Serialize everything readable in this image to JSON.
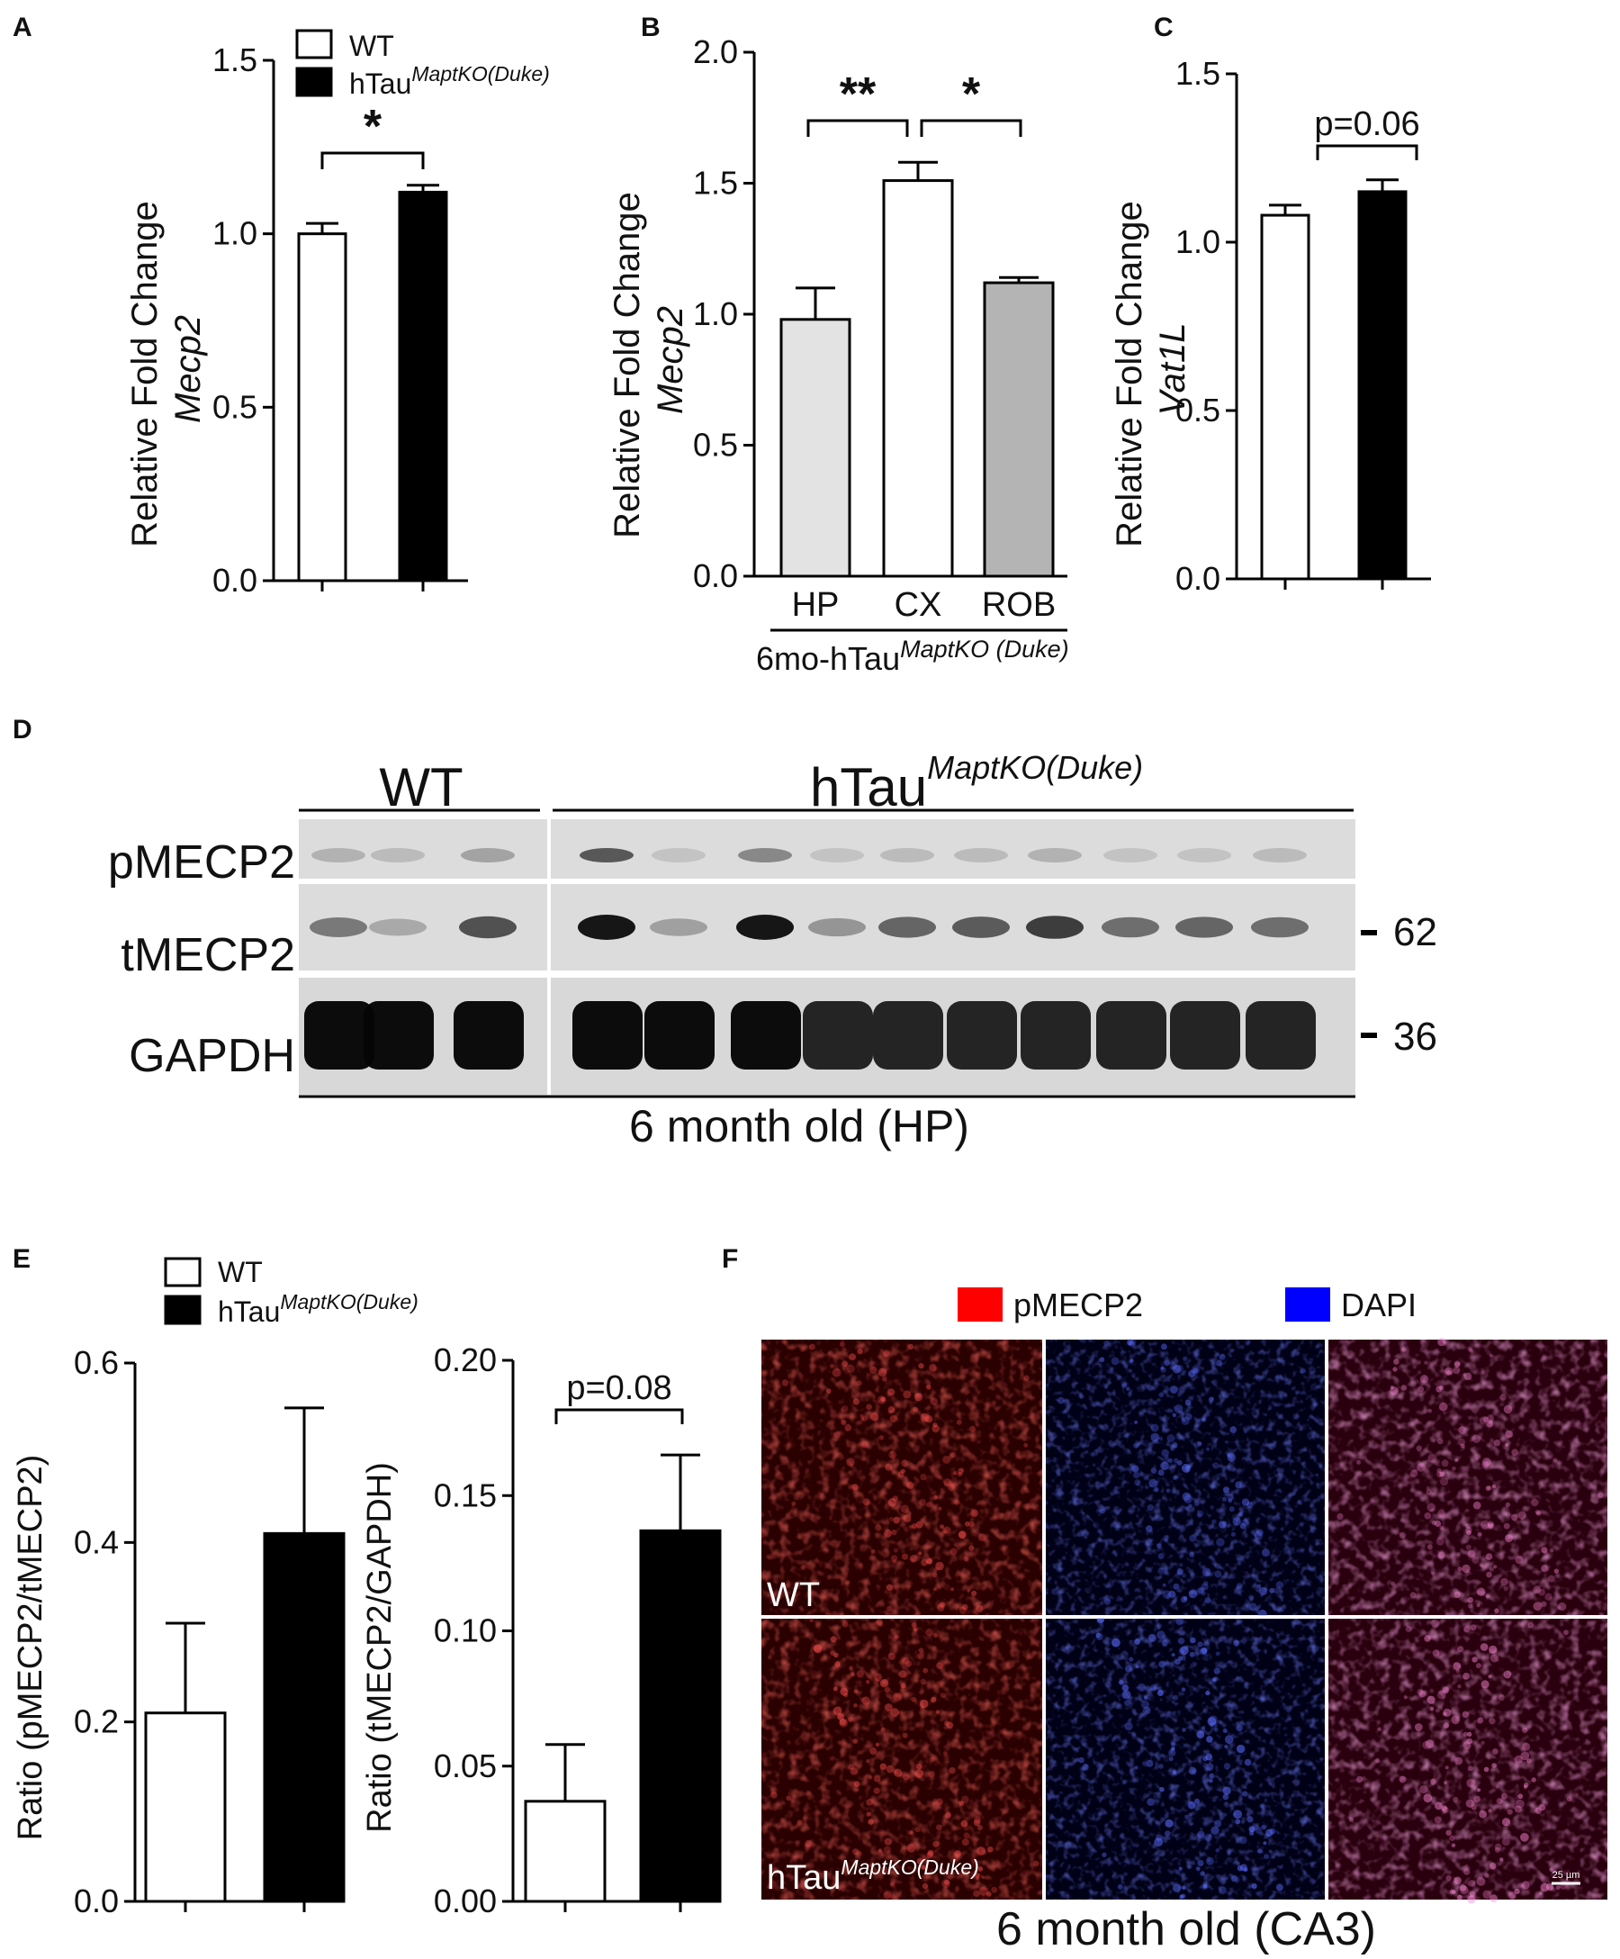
{
  "panels": {
    "A": "A",
    "B": "B",
    "C": "C",
    "D": "D",
    "E": "E",
    "F": "F"
  },
  "legend": {
    "wt": "WT",
    "htau": "hTau",
    "htau_sup": "MaptKO(Duke)"
  },
  "colors": {
    "wt": "#ffffff",
    "htau": "#000000",
    "hp": "#e3e3e3",
    "cx": "#ffffff",
    "rob": "#b4b4b4",
    "red_channel": "#ff0000",
    "blue_channel": "#0000ff"
  },
  "chart_data": [
    {
      "panel": "A",
      "type": "bar",
      "categories": [
        "WT",
        "hTau MaptKO(Duke)"
      ],
      "values": [
        1.0,
        1.12
      ],
      "errors": [
        0.03,
        0.02
      ],
      "ylabel_line1": "Relative Fold Change",
      "ylabel_line2": "Mecp2",
      "ylim": [
        0,
        1.5
      ],
      "yticks": [
        "0.0",
        "0.5",
        "1.0",
        "1.5"
      ],
      "significance": "*"
    },
    {
      "panel": "B",
      "type": "bar",
      "categories": [
        "HP",
        "CX",
        "ROB"
      ],
      "values": [
        0.98,
        1.51,
        1.12
      ],
      "errors": [
        0.12,
        0.07,
        0.02
      ],
      "ylabel_line1": "Relative Fold Change",
      "ylabel_line2": "Mecp2",
      "ylim": [
        0,
        2.0
      ],
      "yticks": [
        "0.0",
        "0.5",
        "1.0",
        "1.5",
        "2.0"
      ],
      "xlabel": "6mo-hTau",
      "xlabel_sup": "MaptKO (Duke)",
      "significance": [
        "**",
        "*"
      ]
    },
    {
      "panel": "C",
      "type": "bar",
      "categories": [
        "WT",
        "hTau MaptKO(Duke)"
      ],
      "values": [
        1.08,
        1.15
      ],
      "errors": [
        0.03,
        0.035
      ],
      "ylabel_line1": "Relative Fold Change",
      "ylabel_line2": "Vat1L",
      "ylim": [
        0,
        1.5
      ],
      "yticks": [
        "0.0",
        "0.5",
        "1.0",
        "1.5"
      ],
      "significance": "p=0.06"
    },
    {
      "panel": "E-left",
      "type": "bar",
      "categories": [
        "WT",
        "hTau MaptKO(Duke)"
      ],
      "values": [
        0.21,
        0.41
      ],
      "errors": [
        0.1,
        0.14
      ],
      "ylabel": "Ratio (pMECP2/tMECP2)",
      "ylim": [
        0,
        0.6
      ],
      "yticks": [
        "0.0",
        "0.2",
        "0.4",
        "0.6"
      ]
    },
    {
      "panel": "E-right",
      "type": "bar",
      "categories": [
        "WT",
        "hTau MaptKO(Duke)"
      ],
      "values": [
        0.037,
        0.137
      ],
      "errors": [
        0.021,
        0.028
      ],
      "ylabel": "Ratio (tMECP2/GAPDH)",
      "ylim": [
        0,
        0.2
      ],
      "yticks": [
        "0.00",
        "0.05",
        "0.10",
        "0.15",
        "0.20"
      ],
      "significance": "p=0.08"
    }
  ],
  "blot": {
    "group_wt": "WT",
    "group_htau": "hTau",
    "group_htau_sup": "MaptKO(Duke)",
    "rows": [
      "pMECP2",
      "tMECP2",
      "GAPDH"
    ],
    "markers": [
      "62",
      "36"
    ],
    "caption": "6 month old (HP)",
    "pmecp2_intensity": [
      0.25,
      0.2,
      0.35,
      0.8,
      0.15,
      0.5,
      0.15,
      0.2,
      0.2,
      0.25,
      0.15,
      0.15,
      0.2
    ],
    "tmecp2_intensity": [
      0.5,
      0.25,
      0.7,
      1.0,
      0.3,
      1.0,
      0.35,
      0.6,
      0.65,
      0.8,
      0.55,
      0.6,
      0.55
    ]
  },
  "micro": {
    "legend_red": "pMECP2",
    "legend_blue": "DAPI",
    "row_wt": "WT",
    "row_htau": "hTau",
    "row_htau_sup": "MaptKO(Duke)",
    "scale": "25 µm",
    "caption": "6 month old (CA3)"
  }
}
